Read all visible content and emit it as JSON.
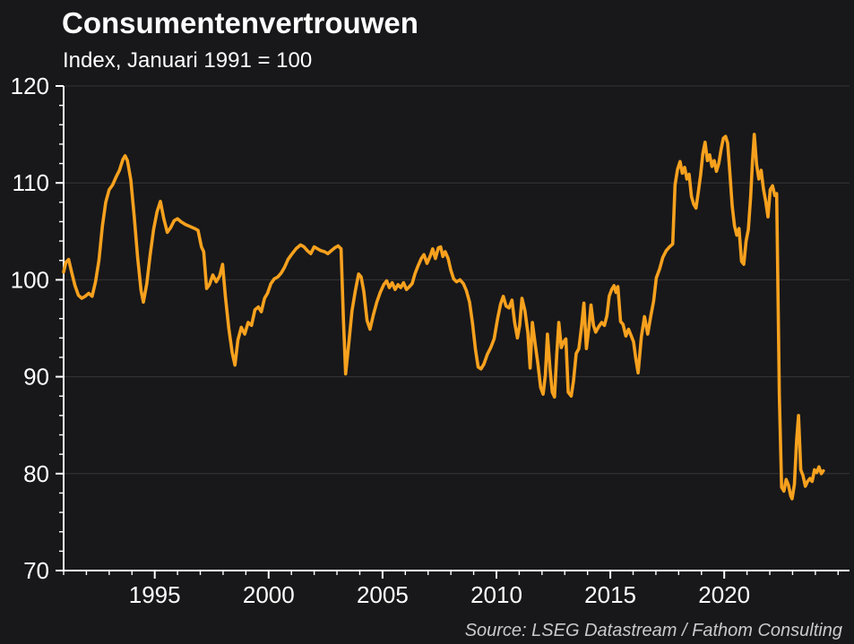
{
  "chart": {
    "title": "Consumentenvertrouwen",
    "subtitle": "Index, Januari 1991 = 100",
    "source": "Source: LSEG Datastream / Fathom Consulting"
  },
  "chart_data": {
    "type": "line",
    "title": "Consumentenvertrouwen",
    "subtitle": "Index, Januari 1991 = 100",
    "source": "Source: LSEG Datastream / Fathom Consulting",
    "xlabel": "",
    "ylabel": "",
    "xlim": [
      1991,
      2025.5
    ],
    "ylim": [
      70,
      120
    ],
    "x_major_ticks": [
      1995,
      2000,
      2005,
      2010,
      2015,
      2020
    ],
    "x_minor_tick_step": 1,
    "y_major_ticks": [
      70,
      80,
      90,
      100,
      110,
      120
    ],
    "y_minor_tick_step": 2,
    "grid": "horizontal major gridlines, faint",
    "legend": "none",
    "colors": {
      "background": "#18181A",
      "line": "#F7A11E",
      "axis": "#FFFFFF",
      "gridline": "#353538",
      "text": "#FFFFFF",
      "source_text": "#C9C9CE"
    },
    "series": [
      {
        "name": "Consumentenvertrouwen index (Januari 1991 = 100)",
        "color": "#F7A11E",
        "points": [
          [
            1991.0,
            100.8
          ],
          [
            1991.1,
            101.8
          ],
          [
            1991.22,
            102.1
          ],
          [
            1991.35,
            100.8
          ],
          [
            1991.5,
            99.4
          ],
          [
            1991.65,
            98.4
          ],
          [
            1991.8,
            98.1
          ],
          [
            1991.95,
            98.3
          ],
          [
            1992.1,
            98.6
          ],
          [
            1992.25,
            98.3
          ],
          [
            1992.4,
            99.8
          ],
          [
            1992.55,
            102.0
          ],
          [
            1992.7,
            105.5
          ],
          [
            1992.85,
            108.0
          ],
          [
            1993.0,
            109.3
          ],
          [
            1993.15,
            109.8
          ],
          [
            1993.3,
            110.6
          ],
          [
            1993.45,
            111.3
          ],
          [
            1993.6,
            112.4
          ],
          [
            1993.7,
            112.8
          ],
          [
            1993.8,
            112.3
          ],
          [
            1993.95,
            110.3
          ],
          [
            1994.1,
            106.5
          ],
          [
            1994.25,
            102.3
          ],
          [
            1994.4,
            98.9
          ],
          [
            1994.5,
            97.7
          ],
          [
            1994.65,
            99.6
          ],
          [
            1994.8,
            102.6
          ],
          [
            1994.95,
            105.2
          ],
          [
            1995.1,
            107.0
          ],
          [
            1995.25,
            108.1
          ],
          [
            1995.4,
            106.3
          ],
          [
            1995.55,
            104.9
          ],
          [
            1995.7,
            105.4
          ],
          [
            1995.85,
            106.1
          ],
          [
            1996.0,
            106.3
          ],
          [
            1996.15,
            106.0
          ],
          [
            1996.35,
            105.7
          ],
          [
            1996.55,
            105.5
          ],
          [
            1996.75,
            105.3
          ],
          [
            1996.9,
            105.1
          ],
          [
            1997.05,
            103.4
          ],
          [
            1997.15,
            102.9
          ],
          [
            1997.28,
            99.1
          ],
          [
            1997.4,
            99.5
          ],
          [
            1997.55,
            100.5
          ],
          [
            1997.7,
            99.8
          ],
          [
            1997.85,
            100.4
          ],
          [
            1997.98,
            101.6
          ],
          [
            1998.1,
            98.3
          ],
          [
            1998.25,
            95.0
          ],
          [
            1998.4,
            92.5
          ],
          [
            1998.52,
            91.2
          ],
          [
            1998.65,
            93.8
          ],
          [
            1998.8,
            95.1
          ],
          [
            1998.95,
            94.4
          ],
          [
            1999.1,
            95.6
          ],
          [
            1999.25,
            95.3
          ],
          [
            1999.4,
            96.9
          ],
          [
            1999.55,
            97.2
          ],
          [
            1999.68,
            96.7
          ],
          [
            1999.82,
            98.1
          ],
          [
            1999.95,
            98.6
          ],
          [
            2000.1,
            99.6
          ],
          [
            2000.25,
            100.1
          ],
          [
            2000.4,
            100.3
          ],
          [
            2000.55,
            100.7
          ],
          [
            2000.7,
            101.3
          ],
          [
            2000.85,
            102.1
          ],
          [
            2001.0,
            102.6
          ],
          [
            2001.2,
            103.2
          ],
          [
            2001.4,
            103.6
          ],
          [
            2001.55,
            103.4
          ],
          [
            2001.7,
            103.0
          ],
          [
            2001.85,
            102.7
          ],
          [
            2002.0,
            103.4
          ],
          [
            2002.15,
            103.2
          ],
          [
            2002.3,
            103.0
          ],
          [
            2002.45,
            102.9
          ],
          [
            2002.6,
            102.7
          ],
          [
            2002.75,
            103.0
          ],
          [
            2002.9,
            103.3
          ],
          [
            2003.05,
            103.5
          ],
          [
            2003.18,
            103.2
          ],
          [
            2003.28,
            96.0
          ],
          [
            2003.38,
            90.3
          ],
          [
            2003.52,
            93.5
          ],
          [
            2003.66,
            96.8
          ],
          [
            2003.8,
            98.8
          ],
          [
            2003.95,
            100.6
          ],
          [
            2004.06,
            100.3
          ],
          [
            2004.18,
            98.8
          ],
          [
            2004.32,
            95.8
          ],
          [
            2004.45,
            94.9
          ],
          [
            2004.6,
            96.4
          ],
          [
            2004.75,
            97.7
          ],
          [
            2004.9,
            98.7
          ],
          [
            2005.05,
            99.5
          ],
          [
            2005.18,
            99.9
          ],
          [
            2005.3,
            99.2
          ],
          [
            2005.42,
            99.7
          ],
          [
            2005.55,
            99.0
          ],
          [
            2005.68,
            99.5
          ],
          [
            2005.8,
            99.2
          ],
          [
            2005.92,
            99.7
          ],
          [
            2006.05,
            99.0
          ],
          [
            2006.18,
            99.3
          ],
          [
            2006.3,
            99.6
          ],
          [
            2006.42,
            100.6
          ],
          [
            2006.55,
            101.4
          ],
          [
            2006.7,
            102.2
          ],
          [
            2006.82,
            102.6
          ],
          [
            2006.95,
            101.7
          ],
          [
            2007.1,
            102.5
          ],
          [
            2007.2,
            103.2
          ],
          [
            2007.32,
            102.2
          ],
          [
            2007.45,
            103.3
          ],
          [
            2007.55,
            103.4
          ],
          [
            2007.65,
            102.4
          ],
          [
            2007.75,
            102.9
          ],
          [
            2007.88,
            102.2
          ],
          [
            2008.0,
            101.0
          ],
          [
            2008.12,
            100.1
          ],
          [
            2008.25,
            99.8
          ],
          [
            2008.4,
            100.0
          ],
          [
            2008.55,
            99.6
          ],
          [
            2008.68,
            98.9
          ],
          [
            2008.82,
            97.7
          ],
          [
            2008.95,
            95.5
          ],
          [
            2009.08,
            92.8
          ],
          [
            2009.2,
            91.0
          ],
          [
            2009.32,
            90.8
          ],
          [
            2009.45,
            91.3
          ],
          [
            2009.6,
            92.3
          ],
          [
            2009.75,
            93.0
          ],
          [
            2009.9,
            93.9
          ],
          [
            2010.05,
            96.0
          ],
          [
            2010.18,
            97.5
          ],
          [
            2010.3,
            98.3
          ],
          [
            2010.42,
            97.3
          ],
          [
            2010.55,
            97.1
          ],
          [
            2010.68,
            97.9
          ],
          [
            2010.8,
            95.6
          ],
          [
            2010.92,
            94.0
          ],
          [
            2011.02,
            95.3
          ],
          [
            2011.12,
            98.1
          ],
          [
            2011.25,
            96.8
          ],
          [
            2011.38,
            94.5
          ],
          [
            2011.48,
            90.9
          ],
          [
            2011.58,
            95.6
          ],
          [
            2011.7,
            93.4
          ],
          [
            2011.82,
            91.3
          ],
          [
            2011.94,
            88.9
          ],
          [
            2012.05,
            88.2
          ],
          [
            2012.15,
            90.2
          ],
          [
            2012.24,
            94.4
          ],
          [
            2012.35,
            90.9
          ],
          [
            2012.45,
            88.4
          ],
          [
            2012.55,
            87.9
          ],
          [
            2012.65,
            92.3
          ],
          [
            2012.74,
            95.6
          ],
          [
            2012.85,
            93.0
          ],
          [
            2012.95,
            93.6
          ],
          [
            2013.05,
            93.9
          ],
          [
            2013.15,
            88.4
          ],
          [
            2013.28,
            88.0
          ],
          [
            2013.38,
            89.5
          ],
          [
            2013.5,
            92.4
          ],
          [
            2013.62,
            92.9
          ],
          [
            2013.74,
            95.3
          ],
          [
            2013.84,
            97.6
          ],
          [
            2013.95,
            92.9
          ],
          [
            2014.06,
            95.1
          ],
          [
            2014.15,
            97.4
          ],
          [
            2014.26,
            95.3
          ],
          [
            2014.36,
            94.6
          ],
          [
            2014.5,
            95.2
          ],
          [
            2014.62,
            95.6
          ],
          [
            2014.74,
            95.3
          ],
          [
            2014.85,
            96.3
          ],
          [
            2014.95,
            98.3
          ],
          [
            2015.06,
            99.0
          ],
          [
            2015.16,
            99.4
          ],
          [
            2015.25,
            98.7
          ],
          [
            2015.33,
            99.3
          ],
          [
            2015.45,
            95.7
          ],
          [
            2015.56,
            95.4
          ],
          [
            2015.68,
            94.2
          ],
          [
            2015.8,
            94.9
          ],
          [
            2015.92,
            94.2
          ],
          [
            2016.02,
            93.6
          ],
          [
            2016.12,
            91.8
          ],
          [
            2016.22,
            90.4
          ],
          [
            2016.36,
            94.1
          ],
          [
            2016.5,
            96.2
          ],
          [
            2016.64,
            94.4
          ],
          [
            2016.78,
            96.3
          ],
          [
            2016.9,
            97.8
          ],
          [
            2017.02,
            100.2
          ],
          [
            2017.16,
            101.1
          ],
          [
            2017.3,
            102.3
          ],
          [
            2017.45,
            103.0
          ],
          [
            2017.6,
            103.4
          ],
          [
            2017.74,
            103.7
          ],
          [
            2017.84,
            109.8
          ],
          [
            2017.95,
            111.4
          ],
          [
            2018.06,
            112.2
          ],
          [
            2018.16,
            111.0
          ],
          [
            2018.26,
            111.6
          ],
          [
            2018.36,
            110.4
          ],
          [
            2018.46,
            110.9
          ],
          [
            2018.56,
            108.6
          ],
          [
            2018.66,
            107.8
          ],
          [
            2018.76,
            107.4
          ],
          [
            2018.86,
            109.0
          ],
          [
            2018.96,
            110.8
          ],
          [
            2019.06,
            113.0
          ],
          [
            2019.16,
            114.2
          ],
          [
            2019.26,
            112.3
          ],
          [
            2019.36,
            112.9
          ],
          [
            2019.46,
            111.7
          ],
          [
            2019.56,
            112.3
          ],
          [
            2019.66,
            111.2
          ],
          [
            2019.76,
            112.0
          ],
          [
            2019.86,
            113.4
          ],
          [
            2019.96,
            114.6
          ],
          [
            2020.06,
            114.8
          ],
          [
            2020.15,
            114.1
          ],
          [
            2020.25,
            111.0
          ],
          [
            2020.35,
            107.6
          ],
          [
            2020.45,
            105.6
          ],
          [
            2020.55,
            104.6
          ],
          [
            2020.65,
            105.3
          ],
          [
            2020.76,
            101.9
          ],
          [
            2020.86,
            101.6
          ],
          [
            2020.96,
            104.0
          ],
          [
            2021.06,
            105.2
          ],
          [
            2021.16,
            108.6
          ],
          [
            2021.24,
            112.2
          ],
          [
            2021.32,
            115.0
          ],
          [
            2021.42,
            111.9
          ],
          [
            2021.52,
            110.4
          ],
          [
            2021.62,
            111.3
          ],
          [
            2021.72,
            109.4
          ],
          [
            2021.82,
            108.1
          ],
          [
            2021.92,
            106.5
          ],
          [
            2022.02,
            109.3
          ],
          [
            2022.12,
            109.7
          ],
          [
            2022.22,
            108.7
          ],
          [
            2022.3,
            108.9
          ],
          [
            2022.42,
            88.0
          ],
          [
            2022.52,
            78.6
          ],
          [
            2022.62,
            78.2
          ],
          [
            2022.72,
            79.4
          ],
          [
            2022.82,
            78.8
          ],
          [
            2022.92,
            77.7
          ],
          [
            2022.98,
            77.4
          ],
          [
            2023.08,
            78.9
          ],
          [
            2023.18,
            83.5
          ],
          [
            2023.26,
            86.0
          ],
          [
            2023.36,
            80.4
          ],
          [
            2023.46,
            79.8
          ],
          [
            2023.56,
            78.7
          ],
          [
            2023.66,
            79.2
          ],
          [
            2023.76,
            79.5
          ],
          [
            2023.86,
            79.2
          ],
          [
            2023.96,
            80.4
          ],
          [
            2024.06,
            80.1
          ],
          [
            2024.16,
            80.7
          ],
          [
            2024.26,
            80.0
          ],
          [
            2024.35,
            80.3
          ]
        ]
      }
    ]
  }
}
